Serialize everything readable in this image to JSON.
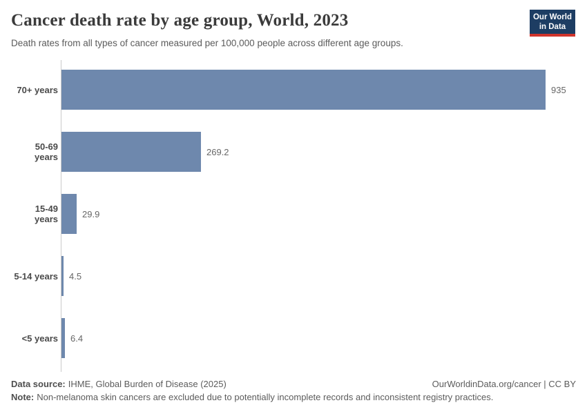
{
  "header": {
    "title": "Cancer death rate by age group, World, 2023",
    "subtitle": "Death rates from all types of cancer measured per 100,000 people across different age groups.",
    "logo": {
      "line1": "Our World",
      "line2": "in Data"
    }
  },
  "chart_data": {
    "type": "bar",
    "orientation": "horizontal",
    "title": "Cancer death rate by age group, World, 2023",
    "categories": [
      "70+ years",
      "50-69 years",
      "15-49 years",
      "5-14 years",
      "<5 years"
    ],
    "values": [
      935,
      269.2,
      29.9,
      4.5,
      6.4
    ],
    "value_labels": [
      "935",
      "269.2",
      "29.9",
      "4.5",
      "6.4"
    ],
    "unit": "deaths per 100,000 people",
    "xlim": [
      0,
      935
    ],
    "grid": false,
    "legend": null,
    "bar_color": "#6e88ad"
  },
  "footer": {
    "datasource_label": "Data source:",
    "datasource_text": "IHME, Global Burden of Disease (2025)",
    "license_text": "OurWorldinData.org/cancer | CC BY",
    "note_label": "Note:",
    "note_text": "Non-melanoma skin cancers are excluded due to potentially incomplete records and inconsistent registry practices."
  },
  "colors": {
    "bar": "#6e88ad",
    "axis_line": "#cacaca",
    "title_text": "#3b3b3b",
    "body_text": "#5b5b5b",
    "logo_navy": "#1d3d63",
    "logo_red": "#d0342c",
    "background": "#ffffff"
  }
}
